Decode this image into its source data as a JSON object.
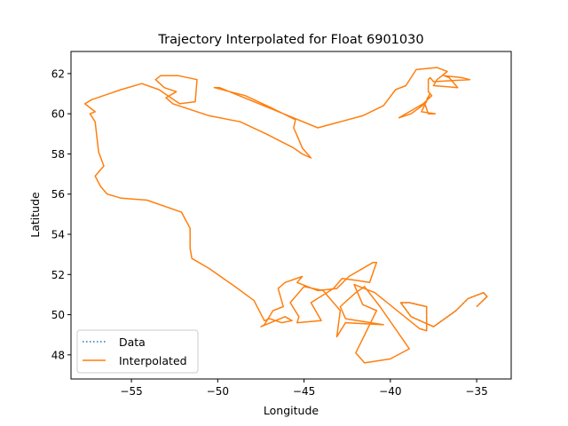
{
  "chart_data": {
    "type": "line",
    "title": "Trajectory Interpolated for Float 6901030",
    "xlabel": "Longitude",
    "ylabel": "Latitude",
    "xlim": [
      -58.5,
      -33.0
    ],
    "ylim": [
      46.8,
      63.1
    ],
    "xticks": [
      -55,
      -50,
      -45,
      -40,
      -35
    ],
    "xtick_labels": [
      "−55",
      "−50",
      "−45",
      "−40",
      "−35"
    ],
    "yticks": [
      48,
      50,
      52,
      54,
      56,
      58,
      60,
      62
    ],
    "ytick_labels": [
      "48",
      "50",
      "52",
      "54",
      "56",
      "58",
      "60",
      "62"
    ],
    "grid": false,
    "legend": {
      "position": "lower-left"
    },
    "series": [
      {
        "name": "Data",
        "style": "dotted",
        "color": "#1f77b4",
        "points": [
          [
            -35.0,
            50.4
          ],
          [
            -34.4,
            50.9
          ],
          [
            -34.6,
            51.1
          ],
          [
            -35.5,
            50.8
          ],
          [
            -36.2,
            50.2
          ],
          [
            -37.5,
            49.4
          ],
          [
            -38.8,
            49.9
          ],
          [
            -39.4,
            50.6
          ],
          [
            -38.9,
            50.6
          ],
          [
            -37.9,
            50.4
          ],
          [
            -37.9,
            49.2
          ],
          [
            -38.3,
            49.3
          ]
        ]
      },
      {
        "name": "Interpolated",
        "style": "solid",
        "color": "#ff7f0e",
        "points": [
          [
            -35.0,
            50.4
          ],
          [
            -34.4,
            50.9
          ],
          [
            -34.6,
            51.1
          ],
          [
            -35.5,
            50.8
          ],
          [
            -36.2,
            50.2
          ],
          [
            -37.5,
            49.4
          ],
          [
            -38.8,
            49.9
          ],
          [
            -39.4,
            50.6
          ],
          [
            -38.9,
            50.6
          ],
          [
            -37.9,
            50.4
          ],
          [
            -37.9,
            49.2
          ],
          [
            -38.3,
            49.3
          ],
          [
            -40.9,
            51.1
          ],
          [
            -42.1,
            51.5
          ],
          [
            -41.6,
            50.5
          ],
          [
            -40.8,
            50.2
          ],
          [
            -42.0,
            48.1
          ],
          [
            -41.5,
            47.6
          ],
          [
            -40.0,
            47.8
          ],
          [
            -38.9,
            48.3
          ],
          [
            -40.6,
            50.4
          ],
          [
            -41.5,
            51.4
          ],
          [
            -42.0,
            51.1
          ],
          [
            -42.9,
            50.4
          ],
          [
            -42.6,
            49.8
          ],
          [
            -40.4,
            49.5
          ],
          [
            -42.6,
            49.6
          ],
          [
            -43.1,
            48.9
          ],
          [
            -42.9,
            50.2
          ],
          [
            -43.9,
            51.2
          ],
          [
            -45.0,
            51.4
          ],
          [
            -45.8,
            50.6
          ],
          [
            -45.3,
            49.9
          ],
          [
            -45.4,
            49.6
          ],
          [
            -44.0,
            49.7
          ],
          [
            -44.6,
            50.6
          ],
          [
            -43.3,
            51.3
          ],
          [
            -42.8,
            51.8
          ],
          [
            -41.9,
            51.7
          ],
          [
            -41.2,
            51.6
          ],
          [
            -40.8,
            52.6
          ],
          [
            -41.0,
            52.6
          ],
          [
            -42.4,
            51.9
          ],
          [
            -43.1,
            51.3
          ],
          [
            -44.2,
            51.2
          ],
          [
            -45.4,
            51.6
          ],
          [
            -45.1,
            51.9
          ],
          [
            -46.1,
            51.6
          ],
          [
            -46.5,
            51.3
          ],
          [
            -46.2,
            50.4
          ],
          [
            -46.8,
            50.2
          ],
          [
            -47.3,
            49.5
          ],
          [
            -47.5,
            49.4
          ],
          [
            -46.1,
            49.9
          ],
          [
            -45.7,
            49.7
          ],
          [
            -46.3,
            49.6
          ],
          [
            -47.0,
            49.8
          ],
          [
            -47.3,
            49.7
          ],
          [
            -47.9,
            50.7
          ],
          [
            -49.0,
            51.4
          ],
          [
            -50.5,
            52.3
          ],
          [
            -51.5,
            52.8
          ],
          [
            -51.6,
            53.3
          ],
          [
            -51.6,
            54.3
          ],
          [
            -52.1,
            55.1
          ],
          [
            -54.1,
            55.7
          ],
          [
            -55.6,
            55.8
          ],
          [
            -56.4,
            56.0
          ],
          [
            -56.8,
            56.4
          ],
          [
            -57.1,
            56.9
          ],
          [
            -56.6,
            57.4
          ],
          [
            -56.9,
            58.1
          ],
          [
            -57.1,
            59.6
          ],
          [
            -57.4,
            60.0
          ],
          [
            -57.1,
            60.1
          ],
          [
            -57.7,
            60.5
          ],
          [
            -57.3,
            60.7
          ],
          [
            -55.6,
            61.2
          ],
          [
            -54.4,
            61.5
          ],
          [
            -53.4,
            61.2
          ],
          [
            -52.9,
            60.9
          ],
          [
            -52.2,
            60.5
          ],
          [
            -51.3,
            60.6
          ],
          [
            -51.2,
            61.7
          ],
          [
            -52.3,
            61.9
          ],
          [
            -53.3,
            61.9
          ],
          [
            -53.6,
            61.7
          ],
          [
            -53.1,
            61.3
          ],
          [
            -52.4,
            61.1
          ],
          [
            -53.0,
            60.8
          ],
          [
            -52.6,
            60.5
          ],
          [
            -51.9,
            60.3
          ],
          [
            -50.5,
            59.9
          ],
          [
            -48.7,
            59.6
          ],
          [
            -47.2,
            59.0
          ],
          [
            -45.6,
            58.3
          ],
          [
            -45.1,
            58.0
          ],
          [
            -44.6,
            57.8
          ],
          [
            -45.1,
            58.3
          ],
          [
            -45.3,
            58.7
          ],
          [
            -45.6,
            59.3
          ],
          [
            -45.5,
            59.7
          ],
          [
            -46.9,
            60.3
          ],
          [
            -48.4,
            60.9
          ],
          [
            -50.2,
            61.3
          ],
          [
            -49.9,
            61.3
          ],
          [
            -44.2,
            59.3
          ],
          [
            -41.6,
            59.9
          ],
          [
            -40.4,
            60.4
          ],
          [
            -39.7,
            61.2
          ],
          [
            -39.1,
            61.4
          ],
          [
            -38.5,
            62.2
          ],
          [
            -37.3,
            62.3
          ],
          [
            -36.7,
            62.1
          ],
          [
            -37.3,
            61.7
          ],
          [
            -37.5,
            61.4
          ],
          [
            -36.1,
            61.3
          ],
          [
            -36.6,
            61.8
          ],
          [
            -36.9,
            61.9
          ],
          [
            -35.9,
            61.8
          ],
          [
            -35.4,
            61.7
          ],
          [
            -37.5,
            61.6
          ],
          [
            -37.7,
            61.8
          ],
          [
            -37.8,
            61.7
          ],
          [
            -37.8,
            61.1
          ],
          [
            -37.6,
            60.9
          ],
          [
            -38.1,
            60.5
          ],
          [
            -37.9,
            60.6
          ],
          [
            -39.5,
            59.8
          ],
          [
            -38.8,
            60.0
          ],
          [
            -38.0,
            60.5
          ],
          [
            -37.8,
            60.0
          ],
          [
            -37.4,
            60.0
          ],
          [
            -38.2,
            60.1
          ],
          [
            -37.7,
            61.0
          ],
          [
            -37.9,
            60.7
          ]
        ]
      }
    ]
  },
  "legend_entries": [
    {
      "label": "Data",
      "color": "#1f77b4",
      "style": "dotted"
    },
    {
      "label": "Interpolated",
      "color": "#ff7f0e",
      "style": "solid"
    }
  ]
}
